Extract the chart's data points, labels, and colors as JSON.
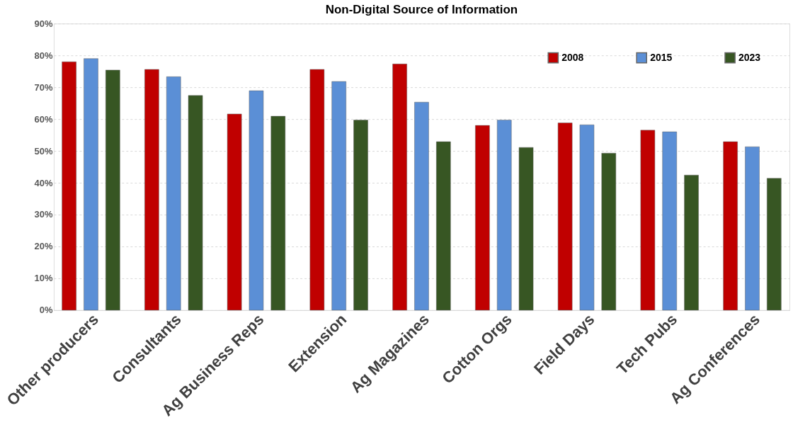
{
  "chart_data": {
    "type": "bar",
    "title": "Non-Digital Source of Information",
    "categories": [
      "Other producers",
      "Consultants",
      "Ag Business Reps",
      "Extension",
      "Ag Magazines",
      "Cotton Orgs",
      "Field Days",
      "Tech Pubs",
      "Ag Conferences"
    ],
    "series": [
      {
        "name": "2008",
        "color": "#c00000",
        "values": [
          78,
          75.6,
          61.6,
          75.6,
          77.3,
          58,
          58.8,
          56.5,
          52.9
        ]
      },
      {
        "name": "2015",
        "color": "#5b8fd6",
        "values": [
          79,
          73.3,
          68.9,
          71.8,
          65.3,
          59.7,
          58.2,
          56,
          51.3
        ]
      },
      {
        "name": "2023",
        "color": "#375623",
        "values": [
          75.4,
          67.4,
          60.9,
          59.7,
          52.9,
          51.1,
          49.3,
          42.4,
          41.4
        ]
      }
    ],
    "ylim": [
      0,
      90
    ],
    "yticks": [
      {
        "value": 0,
        "label": "0%"
      },
      {
        "value": 10,
        "label": "10%"
      },
      {
        "value": 20,
        "label": "20%"
      },
      {
        "value": 30,
        "label": "30%"
      },
      {
        "value": 40,
        "label": "40%"
      },
      {
        "value": 50,
        "label": "50%"
      },
      {
        "value": 60,
        "label": "60%"
      },
      {
        "value": 70,
        "label": "70%"
      },
      {
        "value": 80,
        "label": "80%"
      },
      {
        "value": 90,
        "label": "90%"
      }
    ],
    "grid": "y",
    "legend": "top right"
  }
}
